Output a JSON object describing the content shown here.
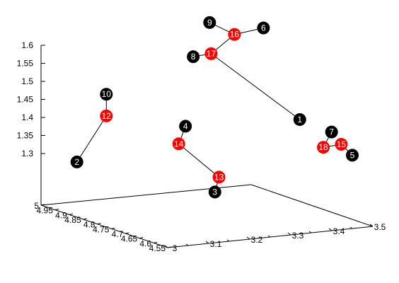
{
  "chart_data": {
    "type": "scatter3d",
    "title": "",
    "xlabel": "",
    "ylabel": "",
    "zlabel": "",
    "grid": false,
    "legend": "none",
    "axes": {
      "x": {
        "range": [
          3,
          3.5
        ],
        "tick_labels": [
          "3",
          "3.1",
          "3.2",
          "3.3",
          "3.4",
          "3.5"
        ]
      },
      "y": {
        "range": [
          4.55,
          5
        ],
        "tick_labels": [
          "4.55",
          "4.6",
          "4.65",
          "4.7",
          "4.75",
          "4.8",
          "4.85",
          "4.9",
          "4.95",
          "5"
        ]
      },
      "z": {
        "range": [
          1.25,
          1.6
        ],
        "tick_labels": [
          "1.3",
          "1.35",
          "1.4",
          "1.45",
          "1.5",
          "1.55",
          "1.6"
        ]
      }
    },
    "nodes": [
      {
        "id": 1,
        "label": "1",
        "color": "#000000",
        "x": 3.37,
        "y": 4.62,
        "z": 1.45
      },
      {
        "id": 2,
        "label": "2",
        "color": "#000000",
        "x": 3.06,
        "y": 4.96,
        "z": 1.28
      },
      {
        "id": 3,
        "label": "3",
        "color": "#000000",
        "x": 3.17,
        "y": 4.63,
        "z": 1.27
      },
      {
        "id": 4,
        "label": "4",
        "color": "#000000",
        "x": 3.16,
        "y": 4.72,
        "z": 1.43
      },
      {
        "id": 5,
        "label": "5",
        "color": "#000000",
        "x": 3.45,
        "y": 4.55,
        "z": 1.36
      },
      {
        "id": 6,
        "label": "6",
        "color": "#000000",
        "x": 3.35,
        "y": 4.72,
        "z": 1.68
      },
      {
        "id": 7,
        "label": "7",
        "color": "#000000",
        "x": 3.42,
        "y": 4.58,
        "z": 1.42
      },
      {
        "id": 8,
        "label": "8",
        "color": "#000000",
        "x": 3.22,
        "y": 4.78,
        "z": 1.6
      },
      {
        "id": 9,
        "label": "9",
        "color": "#000000",
        "x": 3.26,
        "y": 4.78,
        "z": 1.69
      },
      {
        "id": 10,
        "label": "10",
        "color": "#000000",
        "x": 3.07,
        "y": 4.87,
        "z": 1.49
      },
      {
        "id": 12,
        "label": "12",
        "color": "#ff0000",
        "x": 3.07,
        "y": 4.87,
        "z": 1.43
      },
      {
        "id": 13,
        "label": "13",
        "color": "#ff0000",
        "x": 3.18,
        "y": 4.63,
        "z": 1.31
      },
      {
        "id": 14,
        "label": "14",
        "color": "#ff0000",
        "x": 3.13,
        "y": 4.7,
        "z": 1.39
      },
      {
        "id": 15,
        "label": "15",
        "color": "#ff0000",
        "x": 3.43,
        "y": 4.56,
        "z": 1.39
      },
      {
        "id": 16,
        "label": "16",
        "color": "#ff0000",
        "x": 3.3,
        "y": 4.75,
        "z": 1.66
      },
      {
        "id": 17,
        "label": "17",
        "color": "#ff0000",
        "x": 3.25,
        "y": 4.76,
        "z": 1.61
      },
      {
        "id": 18,
        "label": "18",
        "color": "#ff0000",
        "x": 3.4,
        "y": 4.58,
        "z": 1.38
      }
    ],
    "edges": [
      [
        12,
        10
      ],
      [
        12,
        2
      ],
      [
        14,
        4
      ],
      [
        14,
        13
      ],
      [
        13,
        3
      ],
      [
        17,
        8
      ],
      [
        17,
        16
      ],
      [
        17,
        1
      ],
      [
        16,
        9
      ],
      [
        16,
        6
      ],
      [
        18,
        7
      ],
      [
        18,
        15
      ],
      [
        15,
        5
      ]
    ]
  }
}
